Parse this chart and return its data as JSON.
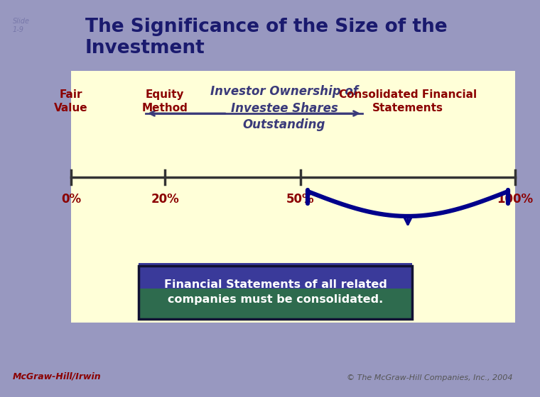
{
  "slide_label": "Slide\n1-9",
  "title": "The Significance of the Size of the\nInvestment",
  "title_color": "#1a1a6e",
  "bg_color": "#9898c0",
  "panel_color": "#ffffd8",
  "investor_text": "Investor Ownership of\nInvestee Shares\nOutstanding",
  "investor_text_color": "#3a3a7a",
  "arrow_color": "#3a3a7a",
  "axis_color": "#333333",
  "tick_labels": [
    "0%",
    "20%",
    "50%",
    "100%"
  ],
  "label_color": "#8b0000",
  "bracket_color": "#00008b",
  "box_top_color": "#3a3a9a",
  "box_bg": "#2e6b4e",
  "box_text": "Financial Statements of all related\ncompanies must be consolidated.",
  "box_text_color": "#ffffff",
  "footer_left": "McGraw-Hill/Irwin",
  "footer_left_color": "#8b0000",
  "footer_right": "© The McGraw-Hill Companies, Inc., 2004",
  "footer_right_color": "#555555"
}
